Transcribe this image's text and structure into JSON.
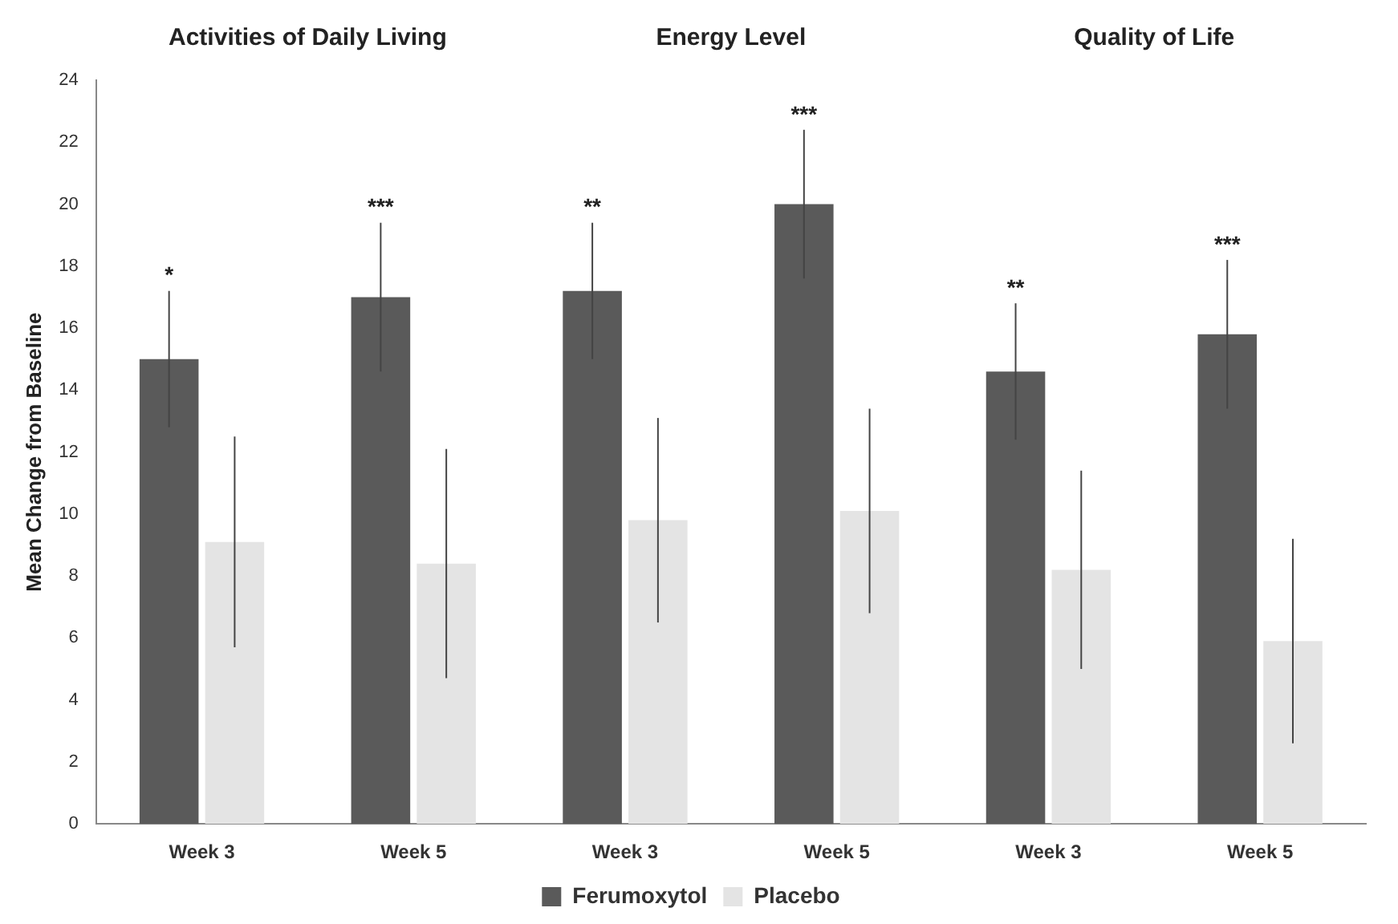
{
  "chart_data": {
    "type": "bar",
    "ylabel": "Mean Change from Baseline",
    "categories": [
      "Week 3",
      "Week 5",
      "Week 3",
      "Week 5",
      "Week 3",
      "Week 5"
    ],
    "series": [
      {
        "name": "Ferumoxytol",
        "color": "#5a5a5a",
        "values": [
          15.0,
          17.0,
          17.2,
          20.0,
          14.6,
          15.8
        ],
        "errors": [
          2.2,
          2.4,
          2.2,
          2.4,
          2.2,
          2.4
        ]
      },
      {
        "name": "Placebo",
        "color": "#e4e4e4",
        "values": [
          9.1,
          8.4,
          9.8,
          10.1,
          8.2,
          5.9
        ],
        "errors": [
          3.4,
          3.7,
          3.3,
          3.3,
          3.2,
          3.3
        ]
      }
    ],
    "ylim": [
      0,
      24
    ],
    "yticks": [
      0,
      2,
      4,
      6,
      8,
      10,
      12,
      14,
      16,
      18,
      20,
      22,
      24
    ],
    "grid": false,
    "legend": "bottom",
    "annotations": [
      "Activities of Daily Living",
      "Energy Level",
      "Quality of Life",
      "*",
      "***",
      "**",
      "***",
      "**",
      "***"
    ]
  }
}
